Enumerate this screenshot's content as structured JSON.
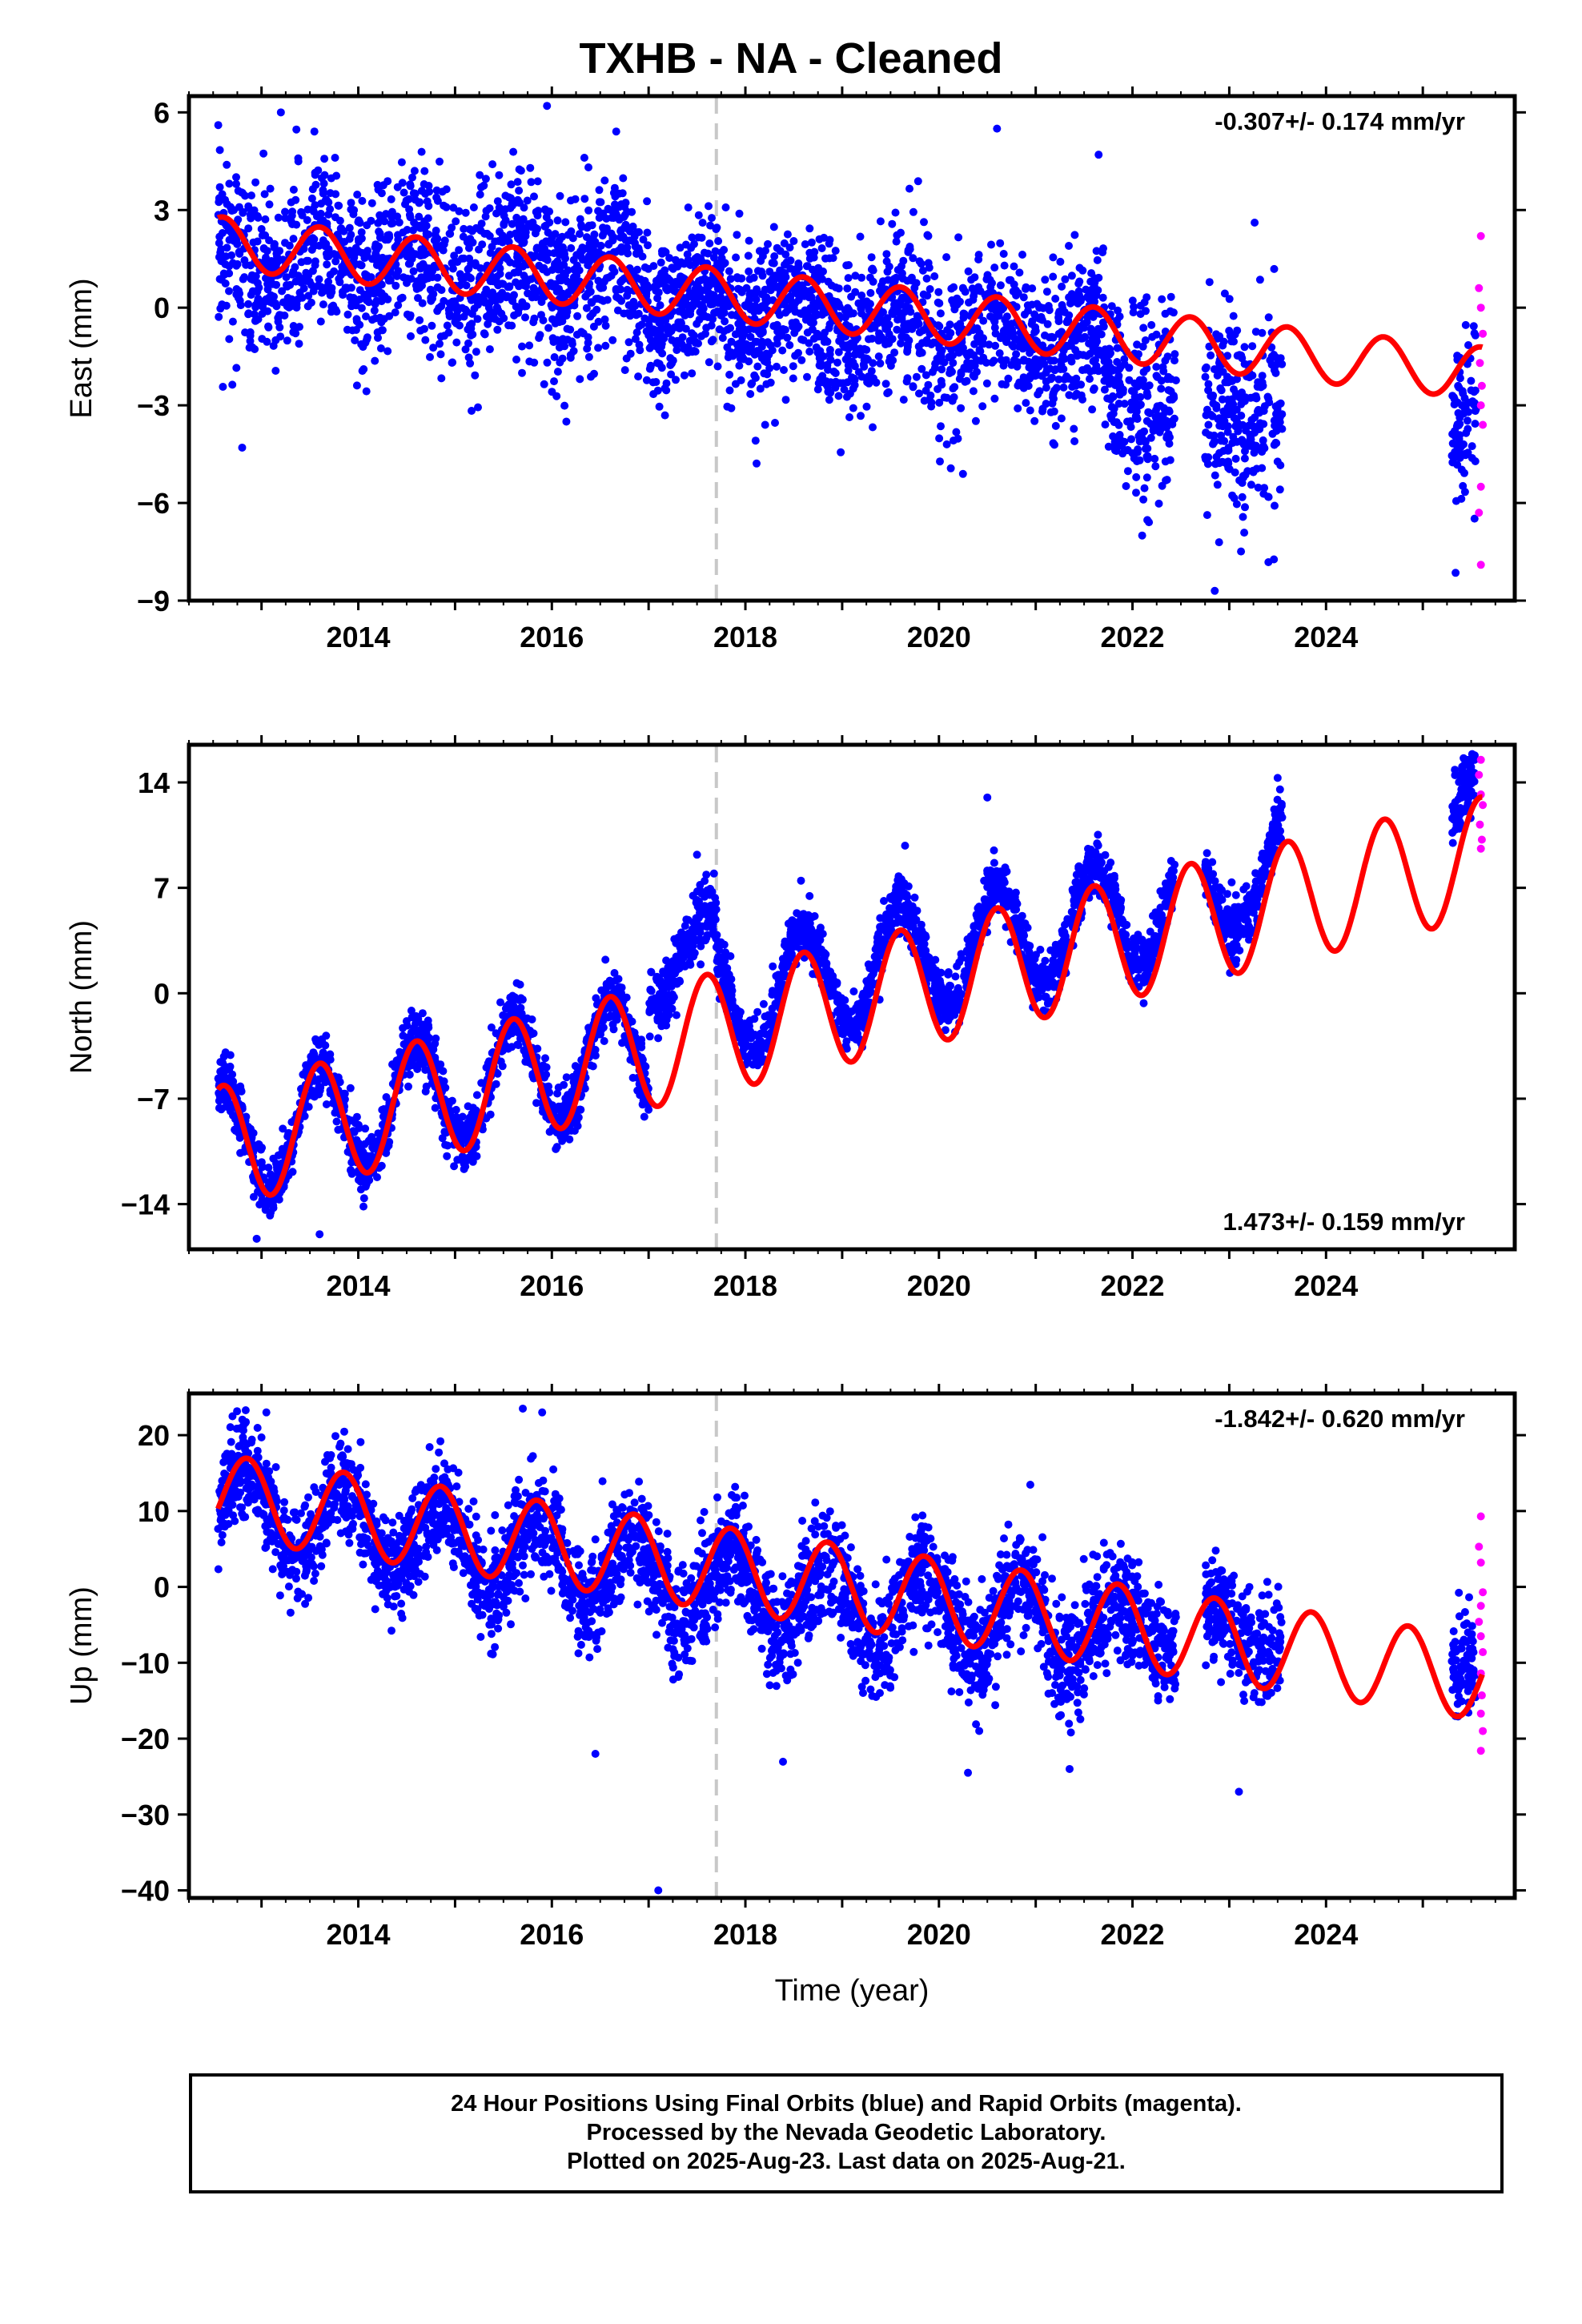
{
  "title": "TXHB  - NA - Cleaned",
  "colors": {
    "final": "#0000ff",
    "rapid": "#ff00ff",
    "model": "#ff0000",
    "event": "#c8c8c8",
    "axis": "#000000"
  },
  "footer": {
    "line1": "24 Hour Positions Using Final Orbits (blue) and Rapid Orbits (magenta).",
    "line2": "Processed by the Nevada Geodetic Laboratory.",
    "line3": "Plotted on 2025-Aug-23. Last data on 2025-Aug-21."
  },
  "chart_data": [
    {
      "type": "scatter",
      "ylabel": "East (mm)",
      "xlabel": "",
      "rate": "-0.307+/- 0.174 mm/yr",
      "rate_position": "top-right",
      "xlim": [
        2012.25,
        2025.95
      ],
      "ylim": [
        -9,
        6.5
      ],
      "yticks": [
        6,
        3,
        0,
        -3,
        -6,
        -9
      ],
      "xticks": [
        2014,
        2016,
        2018,
        2020,
        2022,
        2024
      ],
      "event_line": 2017.7,
      "model": {
        "mean_2012": 2.0,
        "rate": -0.307,
        "amplitude": 0.8,
        "phase": 2013.6
      },
      "series": [
        {
          "name": "Final Orbits",
          "color": "#0000ff",
          "segments": [
            {
              "x": [
                2012.55,
                2017.0
              ],
              "y": [
                1.4,
                1.0
              ],
              "spread": 1.3,
              "seasonal": 0.7
            },
            {
              "x": [
                2017.0,
                2021.7
              ],
              "y": [
                0.2,
                -1.2
              ],
              "spread": 1.2,
              "seasonal": 0.6
            },
            {
              "x": [
                2021.7,
                2022.45
              ],
              "y": [
                -2.5,
                -2.8
              ],
              "spread": 1.4,
              "seasonal": 0.5
            },
            {
              "x": [
                2022.75,
                2023.55
              ],
              "y": [
                -3.0,
                -3.2
              ],
              "spread": 1.6,
              "seasonal": 0.6
            },
            {
              "x": [
                2025.3,
                2025.55
              ],
              "y": [
                -3.8,
                -3.5
              ],
              "spread": 1.4,
              "seasonal": 0.3
            }
          ],
          "outliers": [
            [
              2012.8,
              -4.3
            ],
            [
              2013.2,
              6.0
            ],
            [
              2015.95,
              6.2
            ],
            [
              2020.6,
              5.5
            ],
            [
              2021.65,
              4.7
            ],
            [
              2022.1,
              -7.0
            ],
            [
              2022.85,
              -8.7
            ],
            [
              2016.15,
              -3.5
            ]
          ]
        },
        {
          "name": "Rapid Orbits",
          "color": "#ff00ff",
          "points": [
            [
              2025.6,
              2.2
            ],
            [
              2025.58,
              0.6
            ],
            [
              2025.6,
              0.0
            ],
            [
              2025.62,
              -0.8
            ],
            [
              2025.59,
              -1.7
            ],
            [
              2025.61,
              -2.4
            ],
            [
              2025.6,
              -3.0
            ],
            [
              2025.62,
              -3.6
            ],
            [
              2025.6,
              -5.5
            ],
            [
              2025.58,
              -6.3
            ],
            [
              2025.6,
              -7.9
            ]
          ]
        }
      ]
    },
    {
      "type": "scatter",
      "ylabel": "North (mm)",
      "xlabel": "",
      "rate": "1.473+/- 0.159 mm/yr",
      "rate_position": "bottom-right",
      "xlim": [
        2012.25,
        2025.95
      ],
      "ylim": [
        -17,
        16.5
      ],
      "yticks": [
        14,
        7,
        0,
        -7,
        -14
      ],
      "xticks": [
        2014,
        2016,
        2018,
        2020,
        2022,
        2024
      ],
      "event_line": 2017.7,
      "model": {
        "mean_2012": -10.2,
        "rate": 1.473,
        "amplitude": 4.0,
        "phase": 2013.6
      },
      "series": [
        {
          "name": "Final Orbits",
          "color": "#0000ff",
          "segments": [
            {
              "x": [
                2012.55,
                2017.0
              ],
              "y": [
                -10.0,
                -3.5
              ],
              "spread": 1.0,
              "seasonal": 3.8
            },
            {
              "x": [
                2017.0,
                2017.7
              ],
              "y": [
                1.0,
                4.0
              ],
              "spread": 1.1,
              "seasonal": 2.0
            },
            {
              "x": [
                2017.7,
                2022.45
              ],
              "y": [
                -0.5,
                6.0
              ],
              "spread": 0.9,
              "seasonal": 3.6
            },
            {
              "x": [
                2022.75,
                2023.55
              ],
              "y": [
                6.0,
                9.0
              ],
              "spread": 1.0,
              "seasonal": 3.2
            },
            {
              "x": [
                2025.3,
                2025.55
              ],
              "y": [
                12.0,
                14.0
              ],
              "spread": 1.0,
              "seasonal": 1.0
            }
          ],
          "outliers": [
            [
              2012.95,
              -16.3
            ],
            [
              2013.6,
              -16.0
            ],
            [
              2017.5,
              9.2
            ],
            [
              2019.65,
              9.8
            ],
            [
              2020.5,
              13.0
            ],
            [
              2023.5,
              14.3
            ]
          ]
        },
        {
          "name": "Rapid Orbits",
          "color": "#ff00ff",
          "points": [
            [
              2025.6,
              15.5
            ],
            [
              2025.58,
              14.5
            ],
            [
              2025.6,
              13.2
            ],
            [
              2025.62,
              12.5
            ],
            [
              2025.59,
              11.2
            ],
            [
              2025.61,
              10.2
            ],
            [
              2025.6,
              9.6
            ]
          ]
        }
      ]
    },
    {
      "type": "scatter",
      "ylabel": "Up (mm)",
      "xlabel": "Time (year)",
      "rate": "-1.842+/- 0.620 mm/yr",
      "rate_position": "top-right",
      "xlim": [
        2012.25,
        2025.95
      ],
      "ylim": [
        -41,
        25.5
      ],
      "yticks": [
        20,
        10,
        0,
        -10,
        -20,
        -30,
        -40
      ],
      "xticks": [
        2014,
        2016,
        2018,
        2020,
        2022,
        2024
      ],
      "event_line": 2017.7,
      "model": {
        "mean_2012": 12.0,
        "rate": -1.842,
        "amplitude": 5.5,
        "phase": 2012.85
      },
      "series": [
        {
          "name": "Final Orbits",
          "color": "#0000ff",
          "segments": [
            {
              "x": [
                2012.55,
                2017.0
              ],
              "y": [
                11.0,
                1.5
              ],
              "spread": 3.2,
              "seasonal": 5.0
            },
            {
              "x": [
                2017.0,
                2021.7
              ],
              "y": [
                1.0,
                -5.5
              ],
              "spread": 3.6,
              "seasonal": 5.0
            },
            {
              "x": [
                2021.7,
                2022.45
              ],
              "y": [
                -4.5,
                -5.5
              ],
              "spread": 3.5,
              "seasonal": 3.0
            },
            {
              "x": [
                2022.75,
                2023.55
              ],
              "y": [
                -5.0,
                -6.5
              ],
              "spread": 3.5,
              "seasonal": 3.0
            },
            {
              "x": [
                2025.3,
                2025.55
              ],
              "y": [
                -9.0,
                -10.0
              ],
              "spread": 3.5,
              "seasonal": 1.0
            }
          ],
          "outliers": [
            [
              2017.1,
              -40.0
            ],
            [
              2023.1,
              -27.0
            ],
            [
              2016.45,
              -22.0
            ],
            [
              2015.7,
              23.5
            ],
            [
              2015.9,
              23.0
            ],
            [
              2013.05,
              23.0
            ],
            [
              2020.3,
              -24.5
            ],
            [
              2021.35,
              -24.0
            ]
          ]
        },
        {
          "name": "Rapid Orbits",
          "color": "#ff00ff",
          "points": [
            [
              2025.6,
              9.3
            ],
            [
              2025.58,
              5.3
            ],
            [
              2025.6,
              3.2
            ],
            [
              2025.62,
              -0.7
            ],
            [
              2025.6,
              -2.5
            ],
            [
              2025.58,
              -4.6
            ],
            [
              2025.6,
              -6.5
            ],
            [
              2025.62,
              -8.6
            ],
            [
              2025.6,
              -11.4
            ],
            [
              2025.61,
              -14.3
            ],
            [
              2025.6,
              -16.7
            ],
            [
              2025.62,
              -19.0
            ],
            [
              2025.6,
              -21.6
            ]
          ]
        }
      ]
    }
  ]
}
